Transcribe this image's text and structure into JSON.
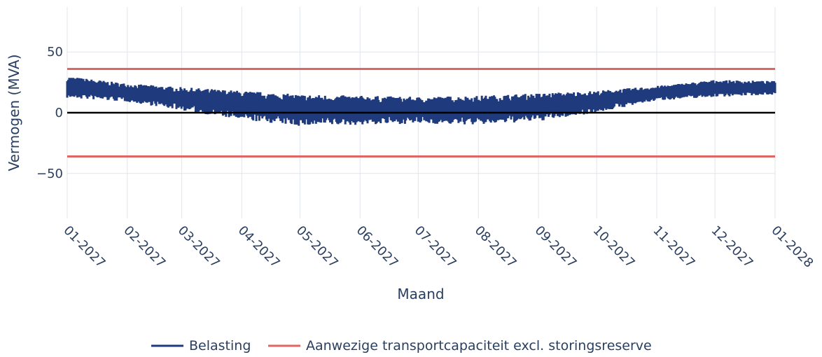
{
  "chart_data": {
    "type": "line",
    "xlabel": "Maand",
    "ylabel": "Vermogen (MVA)",
    "ylim": [
      -87,
      87
    ],
    "xlim": [
      "2027-01-01",
      "2028-01-01"
    ],
    "grid": true,
    "legend_position": "bottom-center",
    "x_tick_labels": [
      "01-2027",
      "02-2027",
      "03-2027",
      "04-2027",
      "05-2027",
      "06-2027",
      "07-2027",
      "08-2027",
      "09-2027",
      "10-2027",
      "11-2027",
      "12-2027",
      "01-2028"
    ],
    "y_tick_labels": [
      "50",
      "0",
      "−50"
    ],
    "y_ticks": [
      50,
      0,
      -50
    ],
    "series": [
      {
        "name": "Belasting",
        "color": "#1f3a7d",
        "style": "dense band (high-frequency load profile)",
        "x": [
          "2027-01-01",
          "2027-02-01",
          "2027-03-01",
          "2027-04-01",
          "2027-05-01",
          "2027-06-01",
          "2027-07-01",
          "2027-08-01",
          "2027-09-01",
          "2027-10-01",
          "2027-11-01",
          "2027-12-01",
          "2028-01-01"
        ],
        "upper": [
          30,
          24,
          21,
          18,
          15,
          14,
          13,
          14,
          16,
          18,
          22,
          27,
          26
        ],
        "lower": [
          12,
          9,
          2,
          -6,
          -11,
          -10,
          -9,
          -10,
          -7,
          0,
          10,
          13,
          15
        ]
      },
      {
        "name": "Aanwezige transportcapaciteit excl. storingsreserve",
        "color": "#e06666",
        "values": [
          36,
          -36
        ]
      }
    ],
    "zero_line_color": "#000000"
  }
}
